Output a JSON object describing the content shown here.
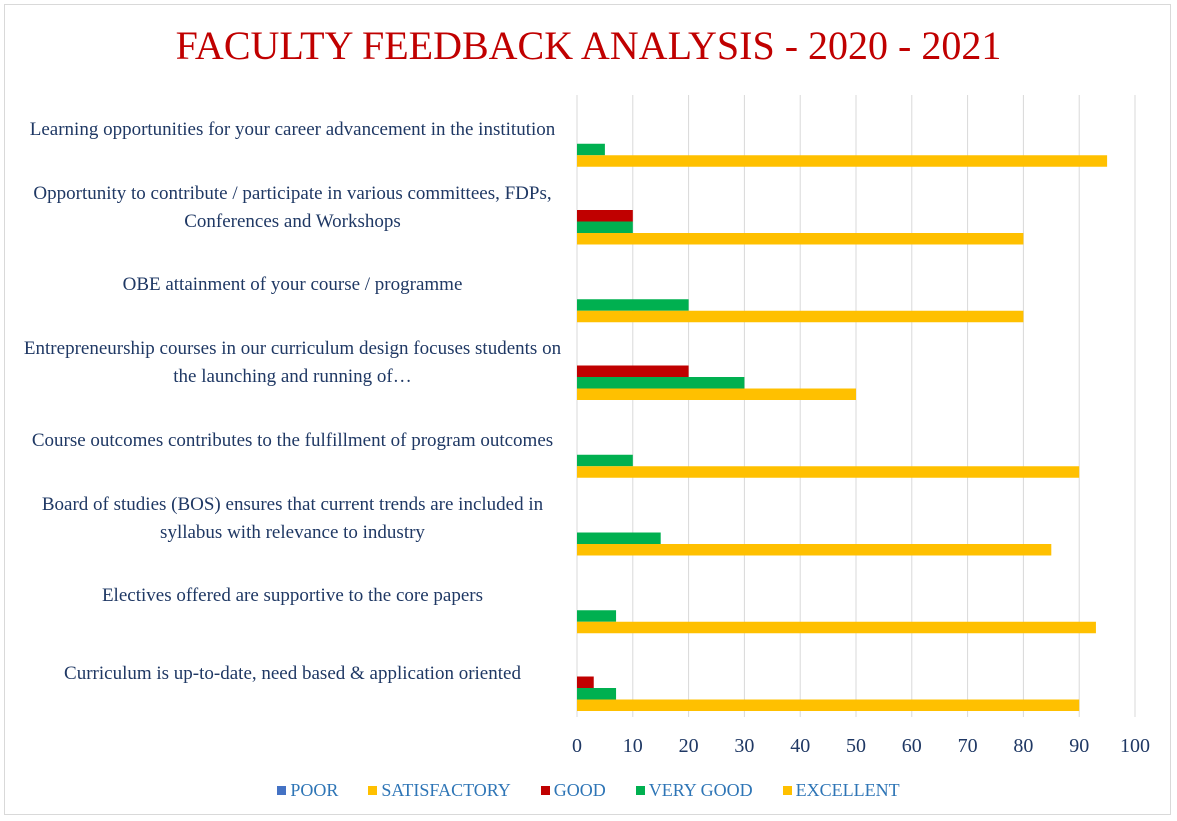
{
  "chart_data": {
    "type": "bar",
    "orientation": "horizontal",
    "title": "FACULTY FEEDBACK ANALYSIS - 2020 - 2021",
    "categories": [
      "Learning opportunities for your career advancement in the institution",
      "Opportunity to contribute / participate in various committees, FDPs, Conferences and Workshops",
      "OBE attainment of your course / programme",
      "Entrepreneurship courses in our curriculum design focuses students on the launching and running of…",
      "Course outcomes contributes to the fulfillment of program outcomes",
      "Board of studies (BOS) ensures that current trends are included in syllabus with relevance to industry",
      "Electives offered are supportive to the core papers",
      "Curriculum is up-to-date, need based & application oriented"
    ],
    "series": [
      {
        "name": "POOR",
        "color": "#4472c4",
        "values": [
          0,
          0,
          0,
          0,
          0,
          0,
          0,
          0
        ]
      },
      {
        "name": "SATISFACTORY",
        "color": "#ffc000",
        "values": [
          0,
          0,
          0,
          0,
          0,
          0,
          0,
          0
        ]
      },
      {
        "name": "GOOD",
        "color": "#c00000",
        "values": [
          0,
          10,
          0,
          20,
          0,
          0,
          0,
          3
        ]
      },
      {
        "name": "VERY GOOD",
        "color": "#00b050",
        "values": [
          5,
          10,
          20,
          30,
          10,
          15,
          7,
          7
        ]
      },
      {
        "name": "EXCELLENT",
        "color": "#ffc000",
        "values": [
          95,
          80,
          80,
          50,
          90,
          85,
          93,
          90
        ]
      }
    ],
    "xlim": [
      0,
      100
    ],
    "xticks": [
      0,
      10,
      20,
      30,
      40,
      50,
      60,
      70,
      80,
      90,
      100
    ],
    "grid": true,
    "legend": "bottom"
  }
}
